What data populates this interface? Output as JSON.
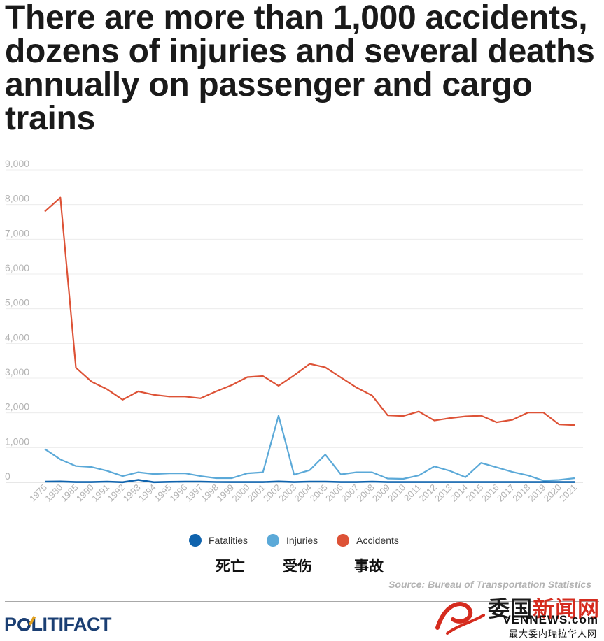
{
  "title": "There are more than 1,000 accidents, dozens of injuries and several deaths annually on passenger and cargo trains",
  "source": "Source: Bureau of Transportation Statistics",
  "legend_labels_cjk": [
    "死亡",
    "受伤",
    "事故"
  ],
  "logo": {
    "pre": "P",
    "post": "LITIFACT"
  },
  "watermark": {
    "top_a": "委国",
    "top_b": "新闻网",
    "mid": "VENNEWS.com",
    "bot": "最大委内瑞拉华人网"
  },
  "chart_data": {
    "type": "line",
    "x": [
      "1975",
      "1980",
      "1985",
      "1990",
      "1991",
      "1992",
      "1993",
      "1994",
      "1995",
      "1996",
      "1997",
      "1998",
      "1999",
      "2000",
      "2001",
      "2002",
      "2003",
      "2004",
      "2005",
      "2006",
      "2007",
      "2008",
      "2009",
      "2010",
      "2011",
      "2012",
      "2013",
      "2014",
      "2015",
      "2016",
      "2017",
      "2018",
      "2019",
      "2020",
      "2021"
    ],
    "ylim": [
      0,
      9000
    ],
    "yticks": [
      0,
      1000,
      2000,
      3000,
      4000,
      5000,
      6000,
      7000,
      8000,
      9000
    ],
    "grid": true,
    "legend_position": "bottom-center",
    "series": [
      {
        "name": "Fatalities",
        "color": "#0f63ad",
        "values": [
          20,
          25,
          8,
          8,
          20,
          5,
          70,
          5,
          15,
          20,
          20,
          10,
          8,
          8,
          8,
          25,
          8,
          20,
          20,
          8,
          8,
          20,
          8,
          8,
          8,
          8,
          8,
          8,
          8,
          8,
          8,
          8,
          8,
          8,
          8
        ]
      },
      {
        "name": "Injuries",
        "color": "#5ba9d8",
        "values": [
          960,
          660,
          470,
          440,
          330,
          180,
          290,
          240,
          260,
          260,
          180,
          120,
          120,
          260,
          290,
          1920,
          220,
          350,
          800,
          230,
          290,
          290,
          110,
          100,
          200,
          460,
          330,
          150,
          560,
          430,
          300,
          200,
          50,
          70,
          120
        ]
      },
      {
        "name": "Accidents",
        "color": "#dd5236",
        "values": [
          7800,
          8200,
          3300,
          2900,
          2680,
          2380,
          2620,
          2520,
          2470,
          2470,
          2420,
          2620,
          2800,
          3030,
          3060,
          2780,
          3080,
          3410,
          3310,
          3020,
          2730,
          2500,
          1930,
          1910,
          2040,
          1780,
          1850,
          1900,
          1920,
          1730,
          1800,
          2010,
          2010,
          1670,
          1650
        ]
      }
    ]
  }
}
